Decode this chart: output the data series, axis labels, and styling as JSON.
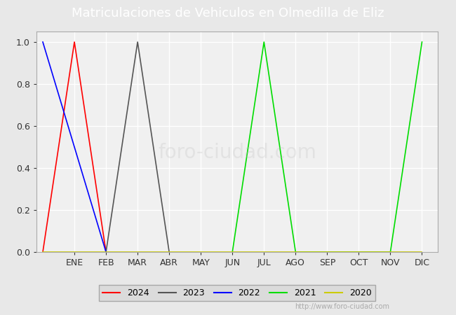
{
  "title": "Matriculaciones de Vehiculos en Olmedilla de Eliz",
  "title_color": "#ffffff",
  "title_bg_color": "#4a7dc9",
  "months": [
    "",
    "ENE",
    "FEB",
    "MAR",
    "ABR",
    "MAY",
    "JUN",
    "JUL",
    "AGO",
    "SEP",
    "OCT",
    "NOV",
    "DIC"
  ],
  "month_positions": [
    0,
    1,
    2,
    3,
    4,
    5,
    6,
    7,
    8,
    9,
    10,
    11,
    12
  ],
  "series": [
    {
      "label": "2024",
      "color": "#ff0000",
      "points": [
        [
          0,
          0.0
        ],
        [
          1,
          1.0
        ],
        [
          2,
          0.0
        ]
      ]
    },
    {
      "label": "2023",
      "color": "#555555",
      "points": [
        [
          2,
          0.0
        ],
        [
          3,
          1.0
        ],
        [
          4,
          0.0
        ]
      ]
    },
    {
      "label": "2022",
      "color": "#0000ff",
      "points": [
        [
          0,
          1.0
        ],
        [
          1,
          0.5
        ],
        [
          2,
          0.0
        ]
      ]
    },
    {
      "label": "2021",
      "color": "#00dd00",
      "points": [
        [
          6,
          0.0
        ],
        [
          7,
          1.0
        ],
        [
          8,
          0.0
        ],
        [
          11,
          0.0
        ],
        [
          12,
          1.0
        ]
      ]
    },
    {
      "label": "2020",
      "color": "#cccc00",
      "points": [
        [
          0,
          0.0
        ],
        [
          12,
          0.0
        ]
      ]
    }
  ],
  "ylim": [
    0.0,
    1.05
  ],
  "yticks": [
    0.0,
    0.2,
    0.4,
    0.6,
    0.8,
    1.0
  ],
  "bg_color": "#e8e8e8",
  "plot_bg_color": "#f0f0f0",
  "watermark": "http://www.foro-ciudad.com",
  "grid_color": "#ffffff",
  "legend_ncol": 5
}
